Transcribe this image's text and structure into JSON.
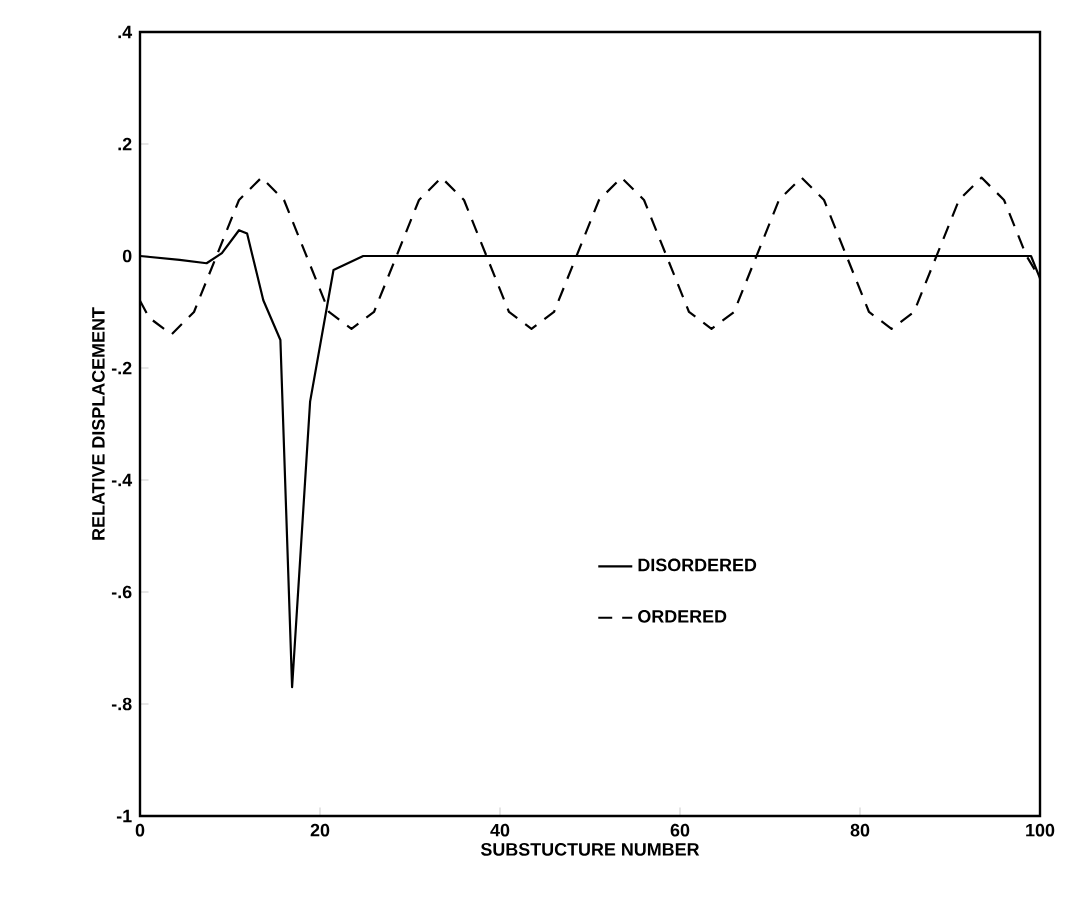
{
  "chart_data": {
    "type": "line",
    "xlabel": "SUBSTUCTURE NUMBER",
    "ylabel": "RELATIVE DISPLACEMENT",
    "xlim": [
      0,
      100
    ],
    "ylim": [
      -1,
      0.4
    ],
    "xticks": [
      0,
      20,
      40,
      60,
      80,
      100
    ],
    "yticks": [
      {
        "value": -1,
        "label": "-1"
      },
      {
        "value": -0.8,
        "label": "-.8"
      },
      {
        "value": -0.6,
        "label": "-.6"
      },
      {
        "value": -0.4,
        "label": "-.4"
      },
      {
        "value": -0.2,
        "label": "-.2"
      },
      0,
      {
        "value": 0.2,
        "label": ".2"
      },
      {
        "value": 0.4,
        "label": ".4"
      }
    ],
    "legend": "right",
    "marker": "none",
    "grid": false,
    "series": [
      {
        "name": "DISORDERED",
        "color": "#000000",
        "line_style": "solid",
        "x": [
          0,
          4.4,
          7.4,
          9.1,
          11,
          11.9,
          13.7,
          15.6,
          16.9,
          18.9,
          21.5,
          24.8,
          40,
          60,
          80,
          99,
          100
        ],
        "values": [
          0,
          -0.007,
          -0.013,
          0.005,
          0.046,
          0.04,
          -0.079,
          -0.15,
          -0.77,
          -0.26,
          -0.025,
          0,
          0,
          0,
          0,
          0,
          -0.04
        ]
      },
      {
        "name": "ORDERED",
        "color": "#000000",
        "line_style": "dashed",
        "x": [
          0,
          1,
          3.5,
          6,
          8.5,
          11,
          13.5,
          16,
          18.5,
          21,
          23.5,
          26,
          28.5,
          31,
          33.5,
          36,
          38.5,
          41,
          43.5,
          46,
          48.5,
          51,
          53.5,
          56,
          58.5,
          61,
          63.5,
          66,
          68.5,
          71,
          73.5,
          76,
          78.5,
          81,
          83.5,
          86,
          88.5,
          91,
          93.5,
          96,
          98.5,
          100
        ],
        "values": [
          -0.08,
          -0.11,
          -0.14,
          -0.1,
          0,
          0.1,
          0.14,
          0.1,
          0,
          -0.1,
          -0.13,
          -0.1,
          0,
          0.1,
          0.14,
          0.1,
          0,
          -0.1,
          -0.13,
          -0.1,
          0,
          0.1,
          0.14,
          0.1,
          0,
          -0.1,
          -0.13,
          -0.1,
          0,
          0.1,
          0.14,
          0.1,
          0,
          -0.1,
          -0.13,
          -0.1,
          0,
          0.1,
          0.14,
          0.1,
          0,
          -0.04
        ]
      }
    ]
  }
}
